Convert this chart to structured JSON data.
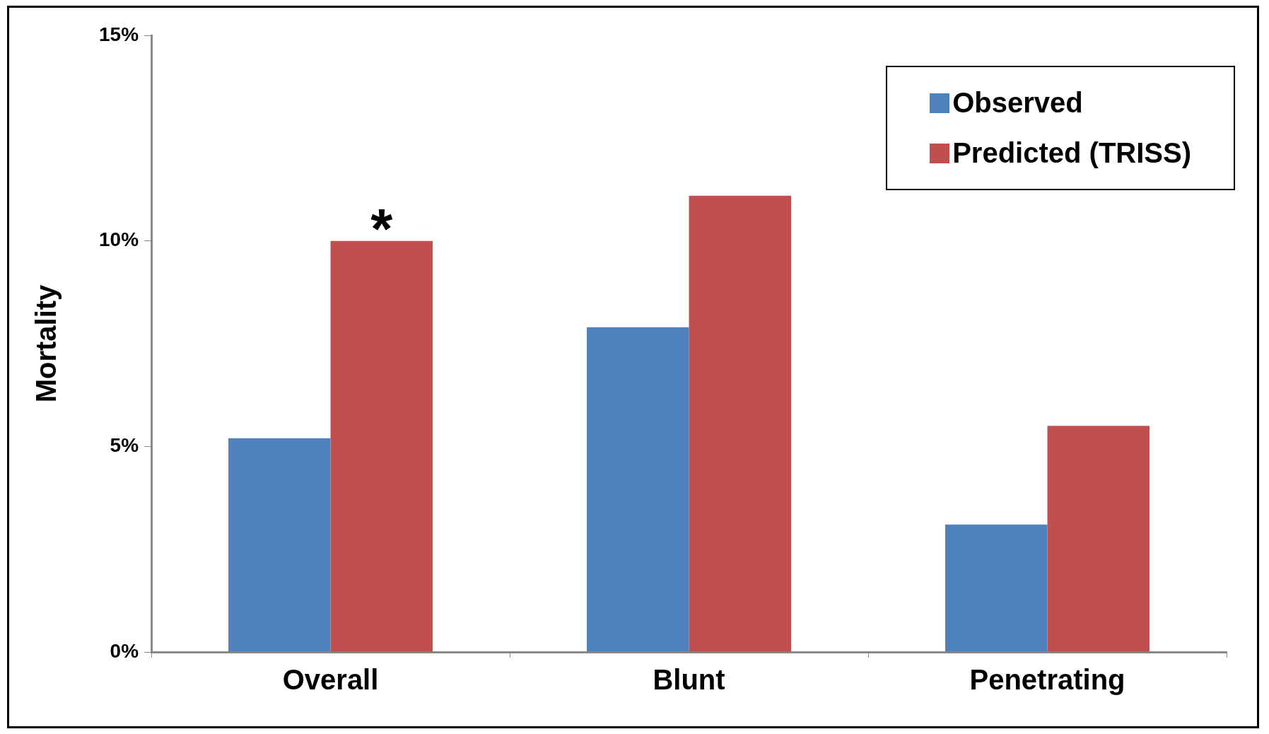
{
  "chart_data": {
    "type": "bar",
    "ylabel": "Mortality",
    "categories": [
      "Overall",
      "Blunt",
      "Penetrating"
    ],
    "series": [
      {
        "name": "Observed",
        "color": "#4f81bd",
        "values": [
          5.2,
          7.9,
          3.1
        ]
      },
      {
        "name": "Predicted (TRISS)",
        "color": "#c0504d",
        "values": [
          10.0,
          11.1,
          5.5
        ]
      }
    ],
    "ylim": [
      0,
      15
    ],
    "yticks": [
      {
        "value": 0,
        "label": "0%"
      },
      {
        "value": 5,
        "label": "5%"
      },
      {
        "value": 10,
        "label": "10%"
      },
      {
        "value": 15,
        "label": "15%"
      }
    ],
    "grid": false,
    "legend": "top right",
    "annotations": [
      {
        "text": "*",
        "x": "Overall",
        "y": 10.0
      }
    ]
  }
}
